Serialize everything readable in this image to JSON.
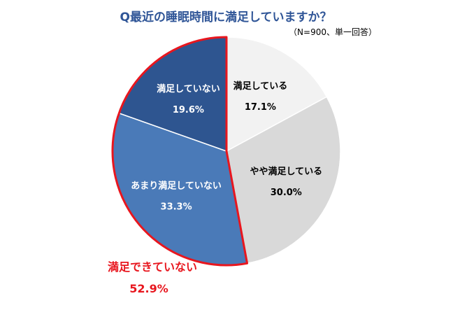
{
  "chart_data": {
    "type": "pie",
    "title": "Q最近の睡眠時間に満足していますか？",
    "subtitle": "（N=900、単一回答）",
    "start_angle_deg": 0,
    "direction": "clockwise",
    "slices": [
      {
        "label": "満足している",
        "value": 17.1,
        "value_label": "17.1%",
        "color": "#f2f2f2",
        "text_color": "#000000"
      },
      {
        "label": "やや満足している",
        "value": 30.0,
        "value_label": "30.0%",
        "color": "#d9d9d9",
        "text_color": "#000000"
      },
      {
        "label": "あまり満足していない",
        "value": 33.3,
        "value_label": "33.3%",
        "color": "#4a7ab8",
        "text_color": "#ffffff"
      },
      {
        "label": "満足していない",
        "value": 19.6,
        "value_label": "19.6%",
        "color": "#2e5590",
        "text_color": "#ffffff"
      }
    ],
    "highlight": {
      "label": "満足できていない",
      "value_label": "52.9%",
      "slices": [
        "あまり満足していない",
        "満足していない"
      ],
      "color": "#e8161e"
    }
  },
  "colors": {
    "title": "#2f5597",
    "note": "#000000",
    "slice_border": "#ffffff"
  }
}
